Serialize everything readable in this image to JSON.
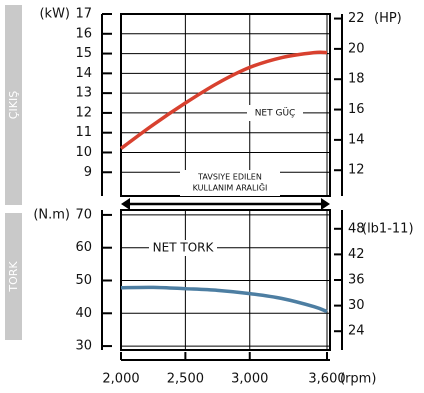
{
  "chart_data": [
    {
      "type": "line",
      "title": "ÇIKIŞ",
      "ylabel": "(kW)",
      "y2label": "(HP)",
      "annotation": "NET GÜÇ",
      "range_label": [
        "TAVSIYE EDILEN",
        "KULLANIM ARALIĞI"
      ],
      "x": [
        2000,
        2250,
        2500,
        2750,
        3000,
        3250,
        3500,
        3600
      ],
      "series": [
        {
          "name": "NET GÜÇ",
          "color": "#d8412f",
          "values": [
            10.2,
            11.4,
            12.5,
            13.5,
            14.3,
            14.8,
            15.05,
            15.05
          ]
        }
      ],
      "xlim": [
        2000,
        3600
      ],
      "ylim": [
        7.8,
        17
      ],
      "yticks": [
        9,
        10,
        11,
        12,
        13,
        14,
        15,
        16,
        17
      ],
      "y2lim": [
        10.3,
        22.3
      ],
      "y2ticks": [
        12,
        14,
        16,
        18,
        20,
        22
      ],
      "grid": true
    },
    {
      "type": "line",
      "title": "TORK",
      "ylabel": "(N.m)",
      "y2label": "(lb1-11)",
      "xlabel": "(rpm)",
      "annotation": "NET TORK",
      "x": [
        2000,
        2250,
        2500,
        2750,
        3000,
        3250,
        3500,
        3600
      ],
      "series": [
        {
          "name": "NET TORK",
          "color": "#4d7ea2",
          "values": [
            47.8,
            47.9,
            47.5,
            47,
            46,
            44.5,
            42,
            40.5
          ]
        }
      ],
      "xlim": [
        2000,
        3600
      ],
      "xticks": [
        {
          "value": 2000,
          "label": "2,000"
        },
        {
          "value": 2500,
          "label": "2,500"
        },
        {
          "value": 3000,
          "label": "3,000"
        },
        {
          "value": 3600,
          "label": "3,600"
        }
      ],
      "ylim": [
        28.8,
        71.5
      ],
      "yticks": [
        30,
        40,
        50,
        60,
        70
      ],
      "y2lim": [
        19.6,
        52.4
      ],
      "y2ticks": [
        24,
        30,
        36,
        42,
        48
      ],
      "grid": true
    }
  ]
}
